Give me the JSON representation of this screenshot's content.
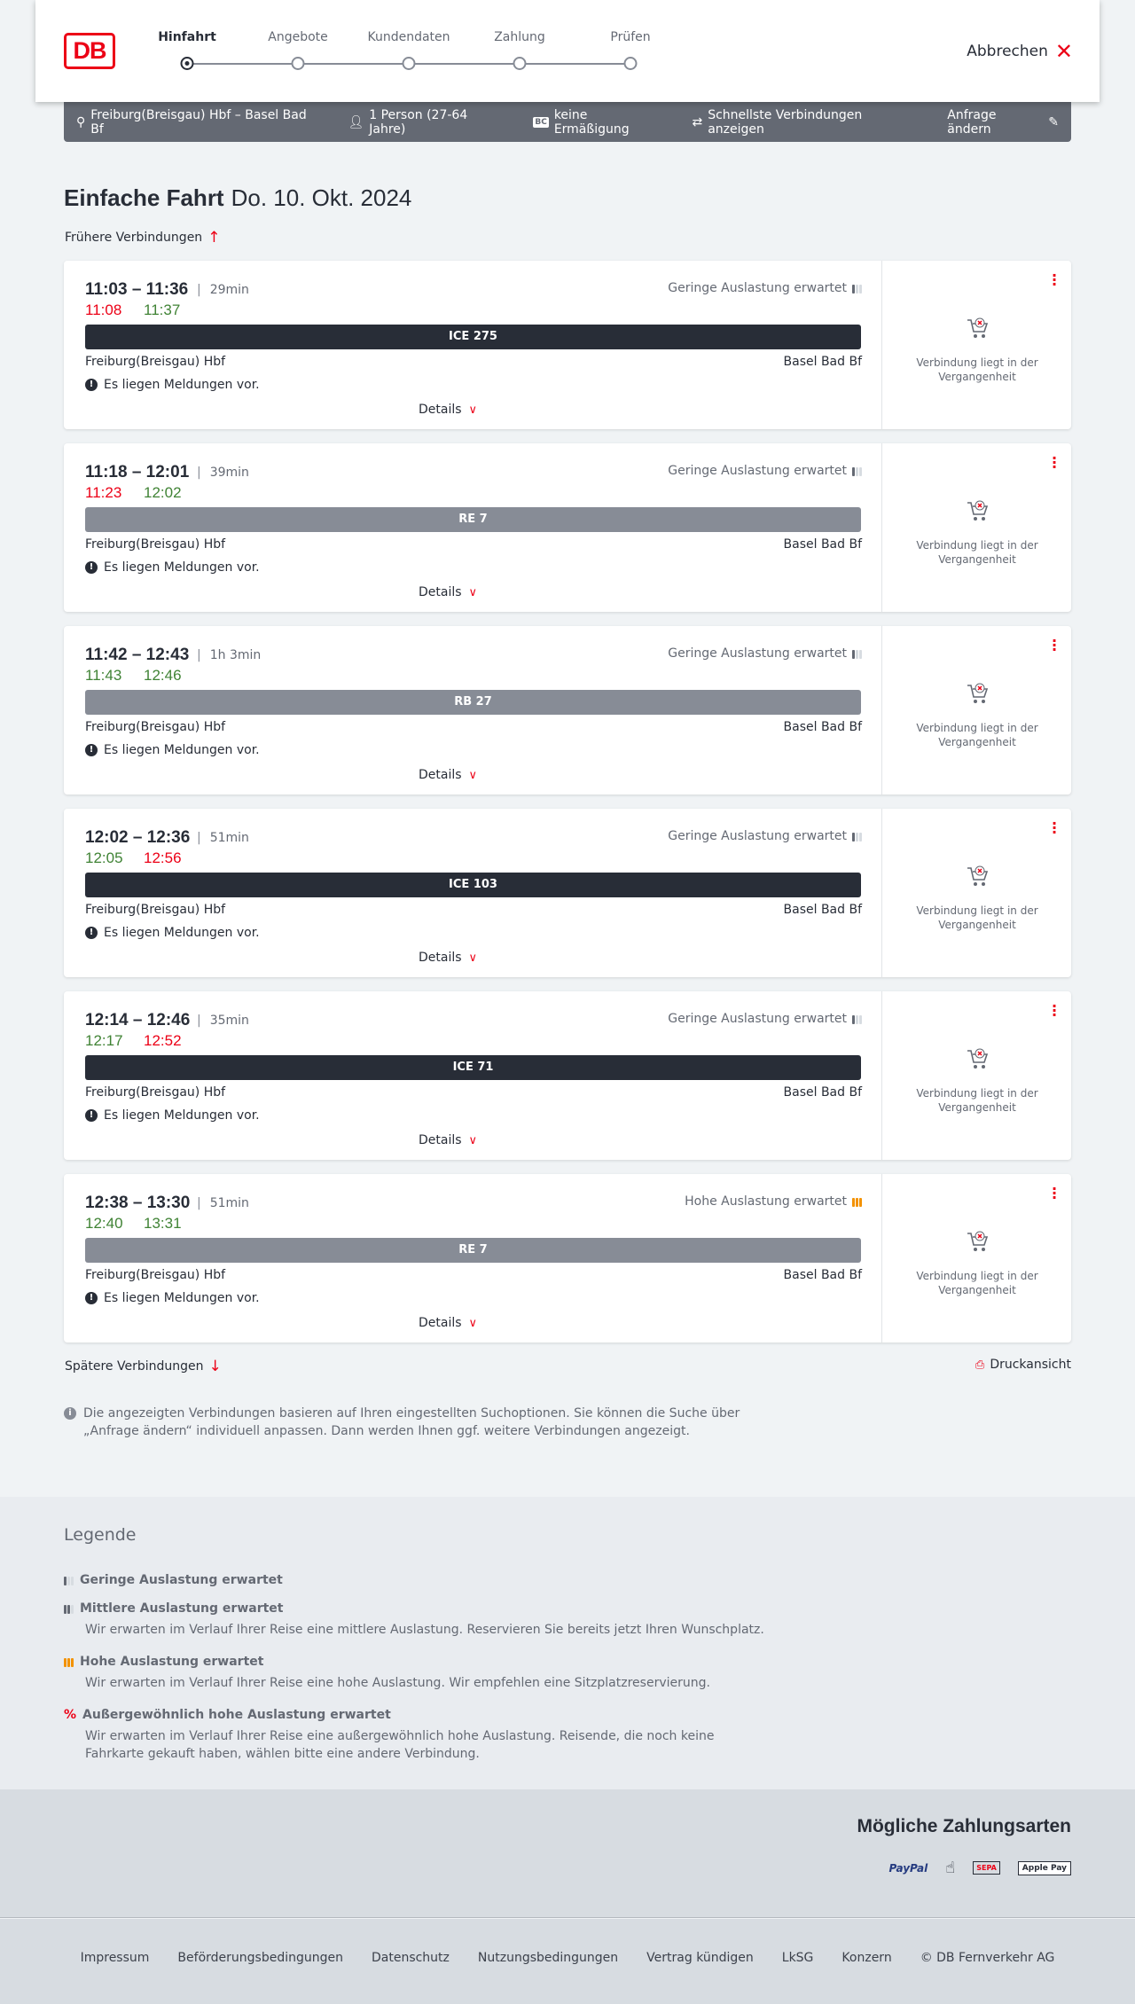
{
  "header": {
    "logo": "DB",
    "steps": [
      {
        "label": "Hinfahrt",
        "active": true
      },
      {
        "label": "Angebote"
      },
      {
        "label": "Kundendaten"
      },
      {
        "label": "Zahlung"
      },
      {
        "label": "Prüfen"
      }
    ],
    "cancel": "Abbrechen"
  },
  "query": {
    "route": "Freiburg(Breisgau) Hbf – Basel Bad Bf",
    "persons": "1 Person (27-64 Jahre)",
    "discount": "keine Ermäßigung",
    "fastest": "Schnellste Verbindungen anzeigen",
    "edit": "Anfrage ändern"
  },
  "title": {
    "type": "Einfache Fahrt",
    "date": "Do. 10. Okt. 2024"
  },
  "earlier": "Frühere Verbindungen",
  "later": "Spätere Verbindungen",
  "print": "Druckansicht",
  "colors": {
    "accent": "#ec0016",
    "delay": "#ec0016",
    "ontime": "#408335",
    "ice": "#282d37",
    "regional": "#878c96",
    "high_load": "#f39200"
  },
  "connections": [
    {
      "times": "11:03 – 11:36",
      "duration": "29min",
      "rt_dep": "11:08",
      "rt_dep_color": "red",
      "rt_arr": "11:37",
      "rt_arr_color": "green",
      "train": "ICE 275",
      "train_type": "ice",
      "load": "Geringe Auslastung erwartet",
      "load_level": "low",
      "from": "Freiburg(Breisgau) Hbf",
      "to": "Basel Bad Bf",
      "message": "Es liegen Meldungen vor.",
      "details": "Details",
      "status": "Verbindung liegt in der Vergangenheit"
    },
    {
      "times": "11:18 – 12:01",
      "duration": "39min",
      "rt_dep": "11:23",
      "rt_dep_color": "red",
      "rt_arr": "12:02",
      "rt_arr_color": "green",
      "train": "RE 7",
      "train_type": "regional",
      "load": "Geringe Auslastung erwartet",
      "load_level": "low",
      "from": "Freiburg(Breisgau) Hbf",
      "to": "Basel Bad Bf",
      "message": "Es liegen Meldungen vor.",
      "details": "Details",
      "status": "Verbindung liegt in der Vergangenheit"
    },
    {
      "times": "11:42 – 12:43",
      "duration": "1h 3min",
      "rt_dep": "11:43",
      "rt_dep_color": "green",
      "rt_arr": "12:46",
      "rt_arr_color": "green",
      "train": "RB 27",
      "train_type": "regional",
      "load": "Geringe Auslastung erwartet",
      "load_level": "low",
      "from": "Freiburg(Breisgau) Hbf",
      "to": "Basel Bad Bf",
      "message": "Es liegen Meldungen vor.",
      "details": "Details",
      "status": "Verbindung liegt in der Vergangenheit"
    },
    {
      "times": "12:02 – 12:36",
      "duration": "51min",
      "rt_dep": "12:05",
      "rt_dep_color": "green",
      "rt_arr": "12:56",
      "rt_arr_color": "red",
      "train": "ICE 103",
      "train_type": "ice",
      "load": "Geringe Auslastung erwartet",
      "load_level": "low",
      "from": "Freiburg(Breisgau) Hbf",
      "to": "Basel Bad Bf",
      "message": "Es liegen Meldungen vor.",
      "details": "Details",
      "status": "Verbindung liegt in der Vergangenheit"
    },
    {
      "times": "12:14 – 12:46",
      "duration": "35min",
      "rt_dep": "12:17",
      "rt_dep_color": "green",
      "rt_arr": "12:52",
      "rt_arr_color": "red",
      "train": "ICE 71",
      "train_type": "ice",
      "load": "Geringe Auslastung erwartet",
      "load_level": "low",
      "from": "Freiburg(Breisgau) Hbf",
      "to": "Basel Bad Bf",
      "message": "Es liegen Meldungen vor.",
      "details": "Details",
      "status": "Verbindung liegt in der Vergangenheit"
    },
    {
      "times": "12:38 – 13:30",
      "duration": "51min",
      "rt_dep": "12:40",
      "rt_dep_color": "green",
      "rt_arr": "13:31",
      "rt_arr_color": "green",
      "train": "RE 7",
      "train_type": "regional",
      "load": "Hohe Auslastung erwartet",
      "load_level": "high",
      "from": "Freiburg(Breisgau) Hbf",
      "to": "Basel Bad Bf",
      "message": "Es liegen Meldungen vor.",
      "details": "Details",
      "status": "Verbindung liegt in der Vergangenheit"
    }
  ],
  "info": "Die angezeigten Verbindungen basieren auf Ihren eingestellten Suchoptionen. Sie können die Suche über „Anfrage ändern“ individuell anpassen. Dann werden Ihnen ggf. weitere Verbindungen angezeigt.",
  "legend": {
    "title": "Legende",
    "items": [
      {
        "title": "Geringe Auslastung erwartet",
        "desc": "",
        "level": "low"
      },
      {
        "title": "Mittlere Auslastung erwartet",
        "desc": "Wir erwarten im Verlauf Ihrer Reise eine mittlere Auslastung. Reservieren Sie bereits jetzt Ihren Wunschplatz.",
        "level": "medium"
      },
      {
        "title": "Hohe Auslastung erwartet",
        "desc": "Wir erwarten im Verlauf Ihrer Reise eine hohe Auslastung. Wir empfehlen eine Sitzplatzreservierung.",
        "level": "high"
      },
      {
        "title": "Außergewöhnlich hohe Auslastung erwartet",
        "desc": "Wir erwarten im Verlauf Ihrer Reise eine außergewöhnlich hohe Auslastung. Reisende, die noch keine Fahrkarte gekauft haben, wählen bitte eine andere Verbindung.",
        "level": "extreme"
      }
    ]
  },
  "payment": {
    "title": "Mögliche Zahlungsarten",
    "methods": [
      "PayPal",
      "Kreditkarte",
      "SEPA",
      "Apple Pay"
    ]
  },
  "footer": {
    "links": [
      "Impressum",
      "Beförderungsbedingungen",
      "Datenschutz",
      "Nutzungsbedingungen",
      "Vertrag kündigen",
      "LkSG",
      "Konzern",
      "© DB Fernverkehr AG"
    ]
  }
}
